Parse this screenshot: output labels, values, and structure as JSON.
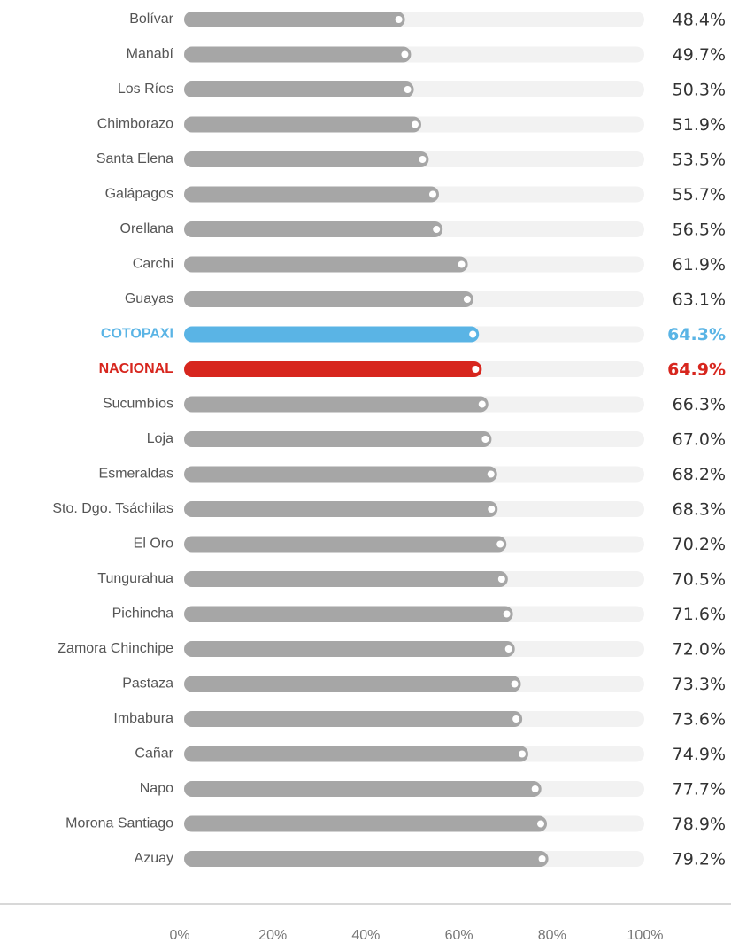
{
  "chart_data": {
    "type": "bar",
    "orientation": "horizontal",
    "categories": [
      "Bolívar",
      "Manabí",
      "Los Ríos",
      "Chimborazo",
      "Santa Elena",
      "Galápagos",
      "Orellana",
      "Carchi",
      "Guayas",
      "COTOPAXI",
      "NACIONAL",
      "Sucumbíos",
      "Loja",
      "Esmeraldas",
      "Sto. Dgo. Tsáchilas",
      "El Oro",
      "Tungurahua",
      "Pichincha",
      "Zamora Chinchipe",
      "Pastaza",
      "Imbabura",
      "Cañar",
      "Napo",
      "Morona Santiago",
      "Azuay"
    ],
    "values": [
      48.4,
      49.7,
      50.3,
      51.9,
      53.5,
      55.7,
      56.5,
      61.9,
      63.1,
      64.3,
      64.9,
      66.3,
      67.0,
      68.2,
      68.3,
      70.2,
      70.5,
      71.6,
      72.0,
      73.3,
      73.6,
      74.9,
      77.7,
      78.9,
      79.2
    ],
    "value_labels": [
      "48.4%",
      "49.7%",
      "50.3%",
      "51.9%",
      "53.5%",
      "55.7%",
      "56.5%",
      "61.9%",
      "63.1%",
      "64.3%",
      "64.9%",
      "66.3%",
      "67.0%",
      "68.2%",
      "68.3%",
      "70.2%",
      "70.5%",
      "71.6%",
      "72.0%",
      "73.3%",
      "73.6%",
      "74.9%",
      "77.7%",
      "78.9%",
      "79.2%"
    ],
    "color": "#a6a6a6",
    "colors": [
      "#a6a6a6",
      "#a6a6a6",
      "#a6a6a6",
      "#a6a6a6",
      "#a6a6a6",
      "#a6a6a6",
      "#a6a6a6",
      "#a6a6a6",
      "#a6a6a6",
      "#5ab4e5",
      "#d7261e",
      "#a6a6a6",
      "#a6a6a6",
      "#a6a6a6",
      "#a6a6a6",
      "#a6a6a6",
      "#a6a6a6",
      "#a6a6a6",
      "#a6a6a6",
      "#a6a6a6",
      "#a6a6a6",
      "#a6a6a6",
      "#a6a6a6",
      "#a6a6a6",
      "#a6a6a6"
    ],
    "xlim": [
      0,
      100
    ],
    "xticks": [
      {
        "value": 0,
        "label": "0%"
      },
      {
        "value": 20,
        "label": "20%"
      },
      {
        "value": 40,
        "label": "40%"
      },
      {
        "value": 60,
        "label": "60%"
      },
      {
        "value": 80,
        "label": "80%"
      },
      {
        "value": 100,
        "label": "100%"
      }
    ]
  }
}
